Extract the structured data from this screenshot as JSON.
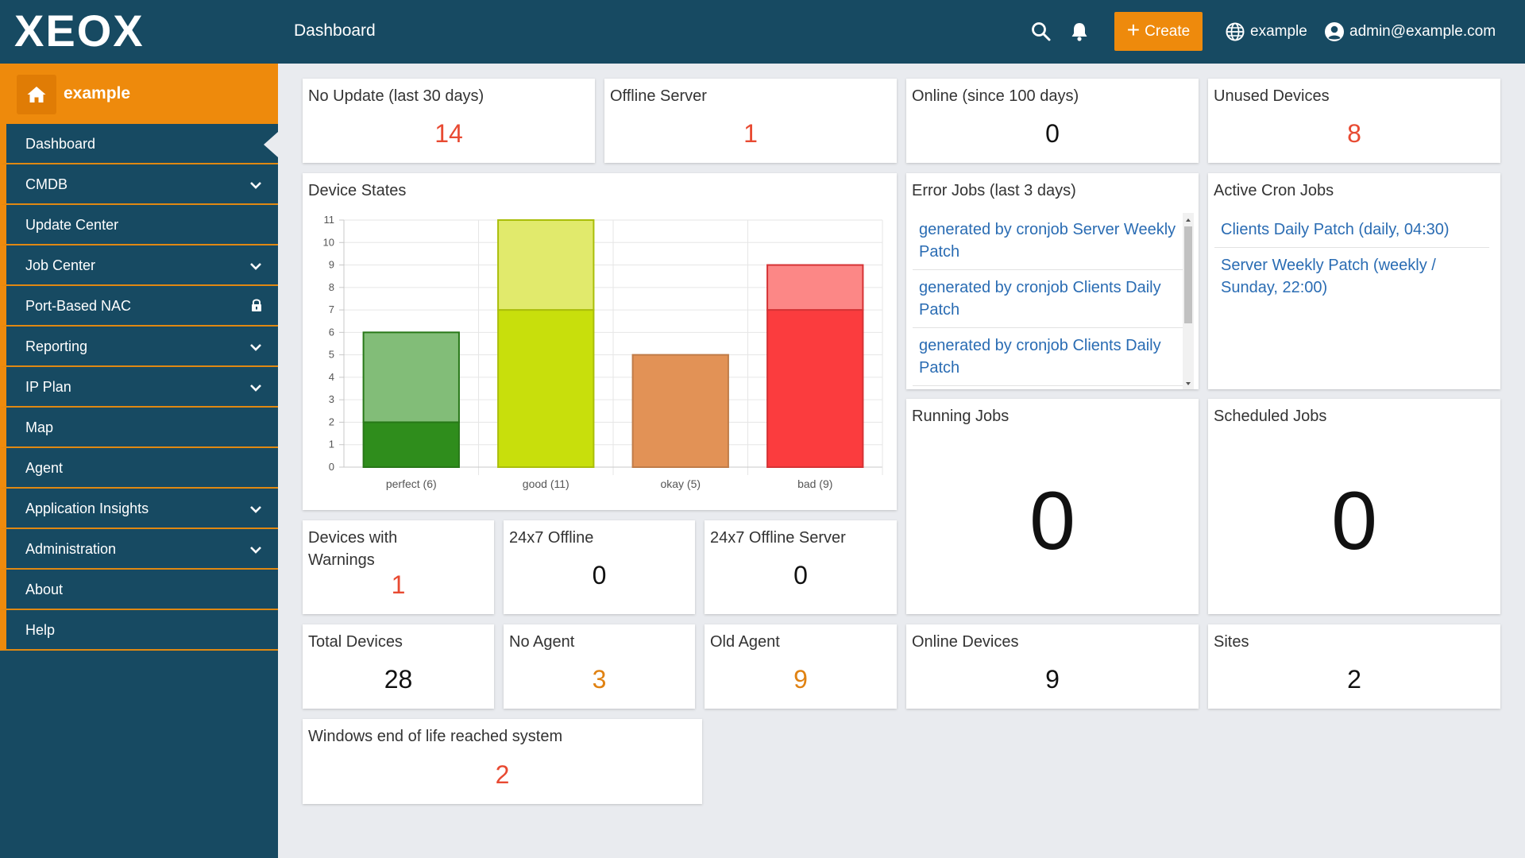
{
  "app": {
    "logo_text": "XEOX",
    "page_title": "Dashboard",
    "create_label": "Create",
    "org_label": "example",
    "user_label": "admin@example.com",
    "brand_color": "#ee8a0c",
    "nav_bg_color": "#174a62"
  },
  "sidebar": {
    "org_name": "example",
    "items": [
      {
        "label": "Dashboard",
        "active": true
      },
      {
        "label": "CMDB",
        "expandable": true
      },
      {
        "label": "Update Center"
      },
      {
        "label": "Job Center",
        "expandable": true
      },
      {
        "label": "Port-Based NAC",
        "locked": true
      },
      {
        "label": "Reporting",
        "expandable": true
      },
      {
        "label": "IP Plan",
        "expandable": true
      },
      {
        "label": "Map"
      },
      {
        "label": "Agent"
      },
      {
        "label": "Application Insights",
        "expandable": true
      },
      {
        "label": "Administration",
        "expandable": true
      },
      {
        "label": "About"
      },
      {
        "label": "Help"
      }
    ]
  },
  "widgets": {
    "no_update": {
      "title": "No Update (last 30 days)",
      "value": "14"
    },
    "offline_server": {
      "title": "Offline Server",
      "value": "1"
    },
    "online_since": {
      "title": "Online (since 100 days)",
      "value": "0"
    },
    "unused_devices": {
      "title": "Unused Devices",
      "value": "8"
    },
    "device_states": {
      "title": "Device States"
    },
    "error_jobs": {
      "title": "Error Jobs (last 3 days)",
      "items": [
        "generated by cronjob Server Weekly Patch",
        "generated by cronjob Clients Daily Patch",
        "generated by cronjob Clients Daily Patch"
      ]
    },
    "active_cron": {
      "title": "Active Cron Jobs",
      "items": [
        "Clients Daily Patch (daily, 04:30)",
        "Server Weekly Patch (weekly / Sunday, 22:00)"
      ]
    },
    "running_jobs": {
      "title": "Running Jobs",
      "value": "0"
    },
    "scheduled_jobs": {
      "title": "Scheduled Jobs",
      "value": "0"
    },
    "devices_warnings": {
      "title": "Devices with Warnings",
      "value": "1"
    },
    "offline_247": {
      "title": "24x7 Offline",
      "value": "0"
    },
    "offline_server_247": {
      "title": "24x7 Offline Server",
      "value": "0"
    },
    "total_devices": {
      "title": "Total Devices",
      "value": "28"
    },
    "no_agent": {
      "title": "No Agent",
      "value": "3"
    },
    "old_agent": {
      "title": "Old Agent",
      "value": "9"
    },
    "online_devices": {
      "title": "Online Devices",
      "value": "9"
    },
    "sites": {
      "title": "Sites",
      "value": "2"
    },
    "windows_eol": {
      "title": "Windows end of life reached system",
      "value": "2"
    }
  },
  "chart_data": {
    "type": "bar",
    "stacked": true,
    "categories": [
      "perfect (6)",
      "good (11)",
      "okay (5)",
      "bad (9)"
    ],
    "series": [
      {
        "values": [
          2,
          7,
          5,
          7
        ]
      },
      {
        "values": [
          4,
          4,
          0,
          2
        ]
      }
    ],
    "colors": {
      "perfect": [
        "#2f8d1c",
        "#82bd78"
      ],
      "good": [
        "#c8df0c",
        "#e1ea6c"
      ],
      "okay": [
        "#e29256",
        "#e29256"
      ],
      "bad": [
        "#fb3c3e",
        "#fc8786"
      ]
    },
    "ylim": [
      0,
      11
    ],
    "yticks": [
      0,
      1,
      2,
      3,
      4,
      5,
      6,
      7,
      8,
      9,
      10,
      11
    ],
    "grid": true
  }
}
